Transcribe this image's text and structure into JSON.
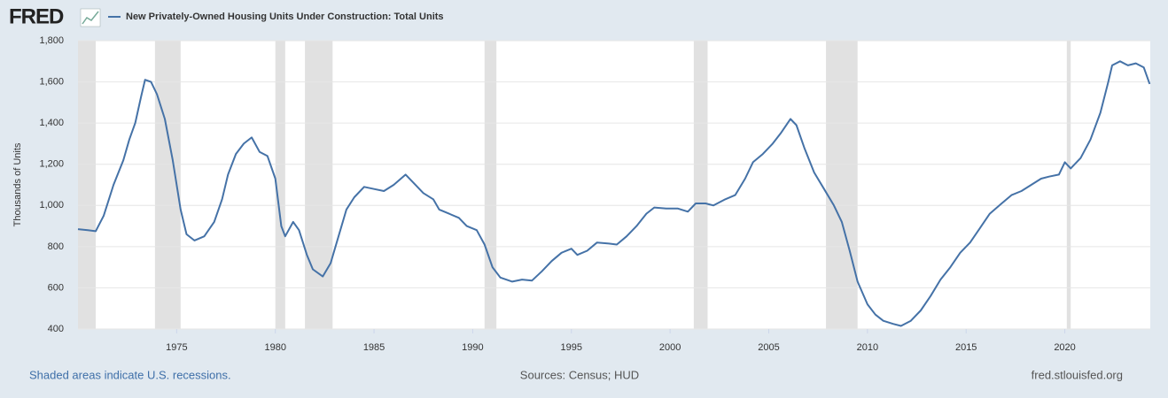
{
  "chart_data": {
    "type": "line",
    "brand": "FRED",
    "title": "New Privately-Owned Housing Units Under Construction: Total Units",
    "ylabel": "Thousands of Units",
    "note": "Shaded areas indicate U.S. recessions.",
    "source": "Sources: Census; HUD",
    "url": "fred.stlouisfed.org",
    "xlim": [
      1970,
      2024.33
    ],
    "xticks": [
      1975,
      1980,
      1985,
      1990,
      1995,
      2000,
      2005,
      2010,
      2015,
      2020
    ],
    "ylim": [
      400,
      1800
    ],
    "yticks": [
      400,
      600,
      800,
      {
        "value": 1000,
        "label": "1,000"
      },
      {
        "value": 1200,
        "label": "1,200"
      },
      {
        "value": 1400,
        "label": "1,400"
      },
      {
        "value": 1600,
        "label": "1,600"
      },
      {
        "value": 1800,
        "label": "1,800"
      }
    ],
    "grid": true,
    "recession_color": "#e1e1e1",
    "recessions": [
      [
        1970.0,
        1970.9
      ],
      [
        1973.9,
        1975.2
      ],
      [
        1980.0,
        1980.5
      ],
      [
        1981.5,
        1982.9
      ],
      [
        1990.6,
        1991.2
      ],
      [
        2001.2,
        2001.9
      ],
      [
        2007.9,
        2009.5
      ],
      [
        2020.1,
        2020.3
      ]
    ],
    "x": [
      1970.0,
      1970.5,
      1970.9,
      1971.3,
      1971.8,
      1972.3,
      1972.6,
      1972.9,
      1973.2,
      1973.4,
      1973.7,
      1974.0,
      1974.4,
      1974.8,
      1975.2,
      1975.5,
      1975.9,
      1976.4,
      1976.9,
      1977.3,
      1977.6,
      1978.0,
      1978.4,
      1978.8,
      1979.2,
      1979.6,
      1980.0,
      1980.3,
      1980.5,
      1980.9,
      1981.2,
      1981.6,
      1981.9,
      1982.4,
      1982.8,
      1983.2,
      1983.6,
      1984.0,
      1984.5,
      1985.0,
      1985.5,
      1986.0,
      1986.6,
      1987.0,
      1987.5,
      1988.0,
      1988.3,
      1988.8,
      1989.3,
      1989.7,
      1990.2,
      1990.6,
      1991.0,
      1991.4,
      1992.0,
      1992.5,
      1993.0,
      1993.5,
      1994.0,
      1994.5,
      1995.0,
      1995.3,
      1995.8,
      1996.3,
      1996.9,
      1997.3,
      1997.8,
      1998.3,
      1998.8,
      1999.2,
      1999.8,
      2000.4,
      2000.9,
      2001.3,
      2001.8,
      2002.2,
      2002.8,
      2003.3,
      2003.8,
      2004.2,
      2004.7,
      2005.2,
      2005.6,
      2006.1,
      2006.4,
      2006.8,
      2007.3,
      2007.8,
      2008.3,
      2008.7,
      2009.1,
      2009.5,
      2010.0,
      2010.4,
      2010.8,
      2011.3,
      2011.7,
      2012.2,
      2012.7,
      2013.2,
      2013.7,
      2014.2,
      2014.7,
      2015.2,
      2015.7,
      2016.2,
      2016.8,
      2017.3,
      2017.8,
      2018.3,
      2018.8,
      2019.2,
      2019.7,
      2020.0,
      2020.3,
      2020.8,
      2021.3,
      2021.8,
      2022.2,
      2022.4,
      2022.8,
      2023.2,
      2023.6,
      2024.0,
      2024.3
    ],
    "series": [
      {
        "name": "New Privately-Owned Housing Units Under Construction: Total Units",
        "color": "#4572a7",
        "values": [
          885,
          880,
          875,
          950,
          1100,
          1220,
          1320,
          1400,
          1530,
          1610,
          1600,
          1540,
          1420,
          1220,
          980,
          860,
          830,
          850,
          920,
          1030,
          1150,
          1250,
          1300,
          1330,
          1260,
          1240,
          1130,
          900,
          850,
          920,
          880,
          760,
          690,
          655,
          720,
          850,
          980,
          1040,
          1090,
          1080,
          1070,
          1100,
          1150,
          1110,
          1060,
          1030,
          980,
          960,
          940,
          900,
          880,
          810,
          700,
          650,
          630,
          640,
          635,
          680,
          730,
          770,
          790,
          760,
          780,
          820,
          815,
          810,
          850,
          900,
          960,
          990,
          985,
          985,
          970,
          1010,
          1010,
          1000,
          1030,
          1050,
          1130,
          1210,
          1250,
          1300,
          1350,
          1420,
          1390,
          1280,
          1160,
          1080,
          1000,
          920,
          780,
          630,
          520,
          470,
          440,
          425,
          415,
          440,
          490,
          560,
          640,
          700,
          770,
          820,
          890,
          960,
          1010,
          1050,
          1070,
          1100,
          1130,
          1140,
          1150,
          1210,
          1180,
          1230,
          1320,
          1450,
          1600,
          1680,
          1700,
          1680,
          1690,
          1670,
          1590
        ]
      }
    ]
  }
}
